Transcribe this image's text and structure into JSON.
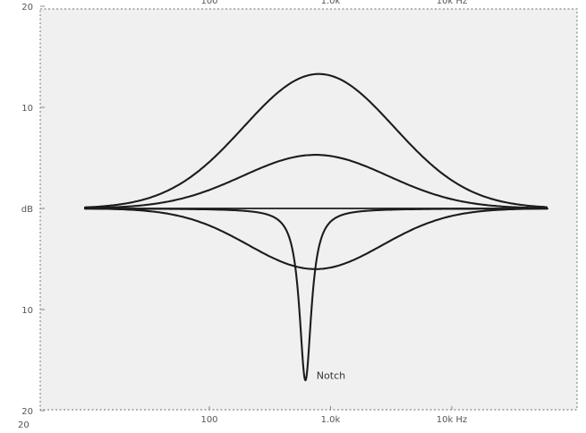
{
  "chart_data": {
    "type": "line",
    "title": "",
    "x_scale": "log",
    "x_range_hz": [
      20,
      20000
    ],
    "ylim": [
      -20,
      20
    ],
    "y_tick_labels": [
      {
        "value": 20,
        "label": "20"
      },
      {
        "value": 10,
        "label": "10"
      },
      {
        "value": 0,
        "label": "dB"
      },
      {
        "value": -10,
        "label": "10"
      },
      {
        "value": -20,
        "label": "20"
      }
    ],
    "x_tick_labels": [
      {
        "value": 100,
        "label": "100"
      },
      {
        "value": 1000,
        "label": "1.0k"
      },
      {
        "value": 10000,
        "label": "10k Hz"
      }
    ],
    "top_tick_labels": [
      {
        "value": 100,
        "label": "100"
      },
      {
        "value": 1000,
        "label": "1.0k"
      },
      {
        "value": 10000,
        "label": "10k Hz"
      }
    ],
    "bottom_left_label": "20",
    "annotations": [
      {
        "text": "Notch",
        "x": 680,
        "y": -16.5
      }
    ],
    "series": [
      {
        "kind": "flat",
        "gain_db": 0
      },
      {
        "kind": "bell",
        "center_hz": 800,
        "gain_db": 13.3,
        "bandwidth_decades": 0.62
      },
      {
        "kind": "bell",
        "center_hz": 750,
        "gain_db": 5.3,
        "bandwidth_decades": 0.6
      },
      {
        "kind": "bell",
        "center_hz": 750,
        "gain_db": -6.0,
        "bandwidth_decades": 0.55
      },
      {
        "kind": "notch",
        "center_hz": 620,
        "gain_db": -17,
        "bandwidth_decades": 0.06
      }
    ]
  }
}
